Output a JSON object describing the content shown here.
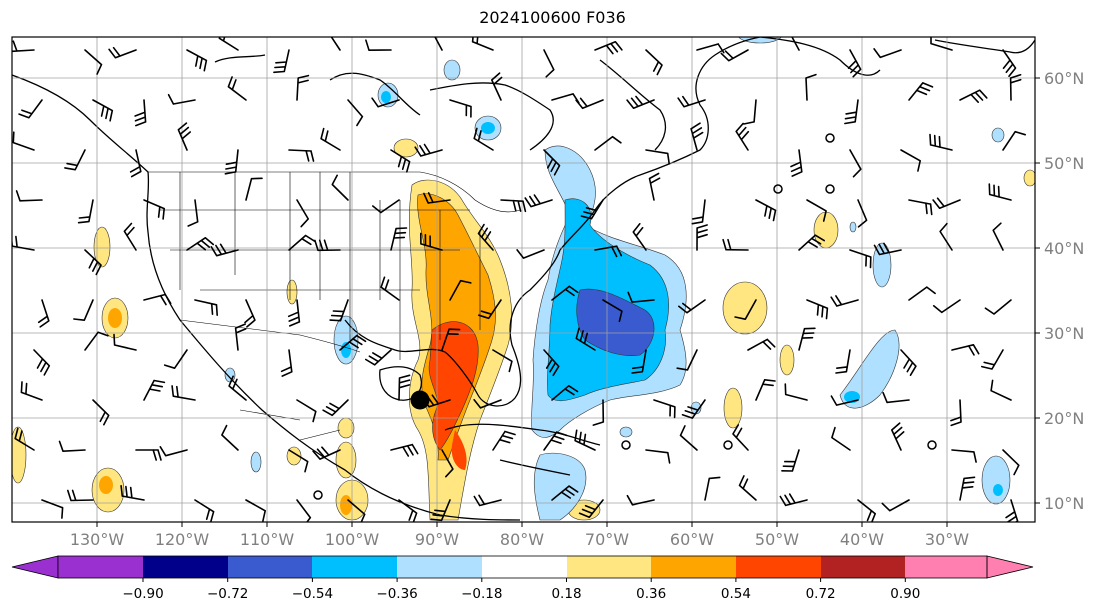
{
  "title": "2024100600 F036",
  "map": {
    "lon_labels": [
      "130°W",
      "120°W",
      "110°W",
      "100°W",
      "90°W",
      "80°W",
      "70°W",
      "60°W",
      "50°W",
      "40°W",
      "30°W"
    ],
    "lat_labels": [
      "60°N",
      "50°N",
      "40°N",
      "30°N",
      "20°N",
      "10°N"
    ],
    "grid": true,
    "storm_marker": "filled-black-circle"
  },
  "colorbar": {
    "ticks": [
      "−0.90",
      "−0.72",
      "−0.54",
      "−0.36",
      "−0.18",
      "0.18",
      "0.36",
      "0.54",
      "0.72",
      "0.90"
    ],
    "colors": {
      "under": "#9b30d0",
      "bins": [
        "#00008b",
        "#3a5bd0",
        "#00bfff",
        "#b0e0ff",
        "#ffffff",
        "#ffe680",
        "#ffa500",
        "#ff4500",
        "#b22222"
      ],
      "over": "#ff7fb0"
    }
  }
}
